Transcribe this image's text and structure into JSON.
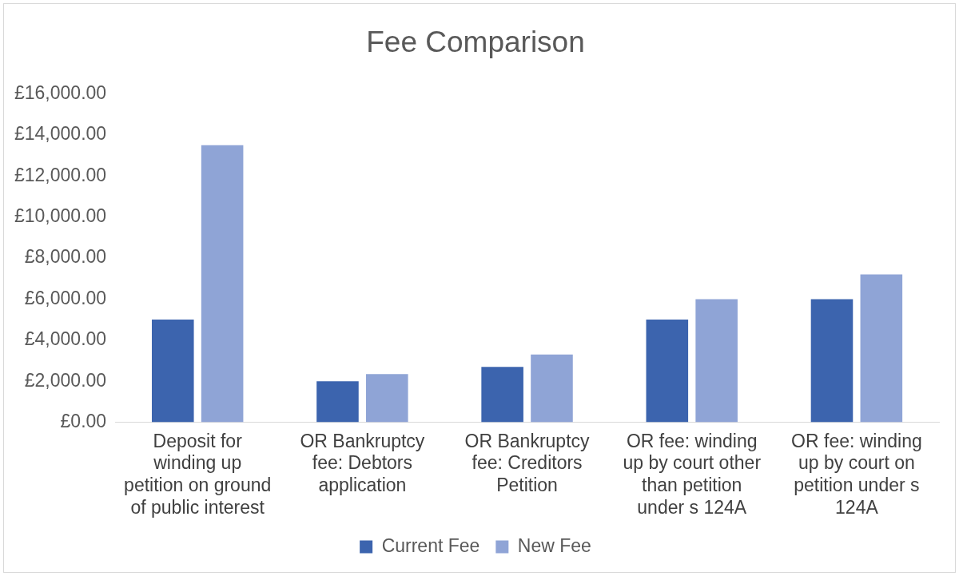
{
  "chart_data": {
    "type": "bar",
    "title": "Fee Comparison",
    "categories": [
      "Deposit for winding up petition on ground of public interest",
      "OR Bankruptcy fee: Debtors application",
      "OR Bankruptcy fee: Creditors Petition",
      "OR fee: winding up by court other than petition under s 124A",
      "OR fee: winding up by court on petition under s 124A"
    ],
    "series": [
      {
        "name": "Current Fee",
        "color": "#3c64ae",
        "values": [
          5000,
          2000,
          2700,
          5000,
          6000
        ]
      },
      {
        "name": "New Fee",
        "color": "#8fa4d6",
        "values": [
          13500,
          2350,
          3300,
          6000,
          7200
        ]
      }
    ],
    "ylim": [
      0,
      16000
    ],
    "yticks": [
      {
        "value": 0,
        "label": "£0.00"
      },
      {
        "value": 2000,
        "label": "£2,000.00"
      },
      {
        "value": 4000,
        "label": "£4,000.00"
      },
      {
        "value": 6000,
        "label": "£6,000.00"
      },
      {
        "value": 8000,
        "label": "£8,000.00"
      },
      {
        "value": 10000,
        "label": "£10,000.00"
      },
      {
        "value": 12000,
        "label": "£12,000.00"
      },
      {
        "value": 14000,
        "label": "£14,000.00"
      },
      {
        "value": 16000,
        "label": "£16,000.00"
      }
    ],
    "grid": false,
    "legend": "bottom"
  }
}
